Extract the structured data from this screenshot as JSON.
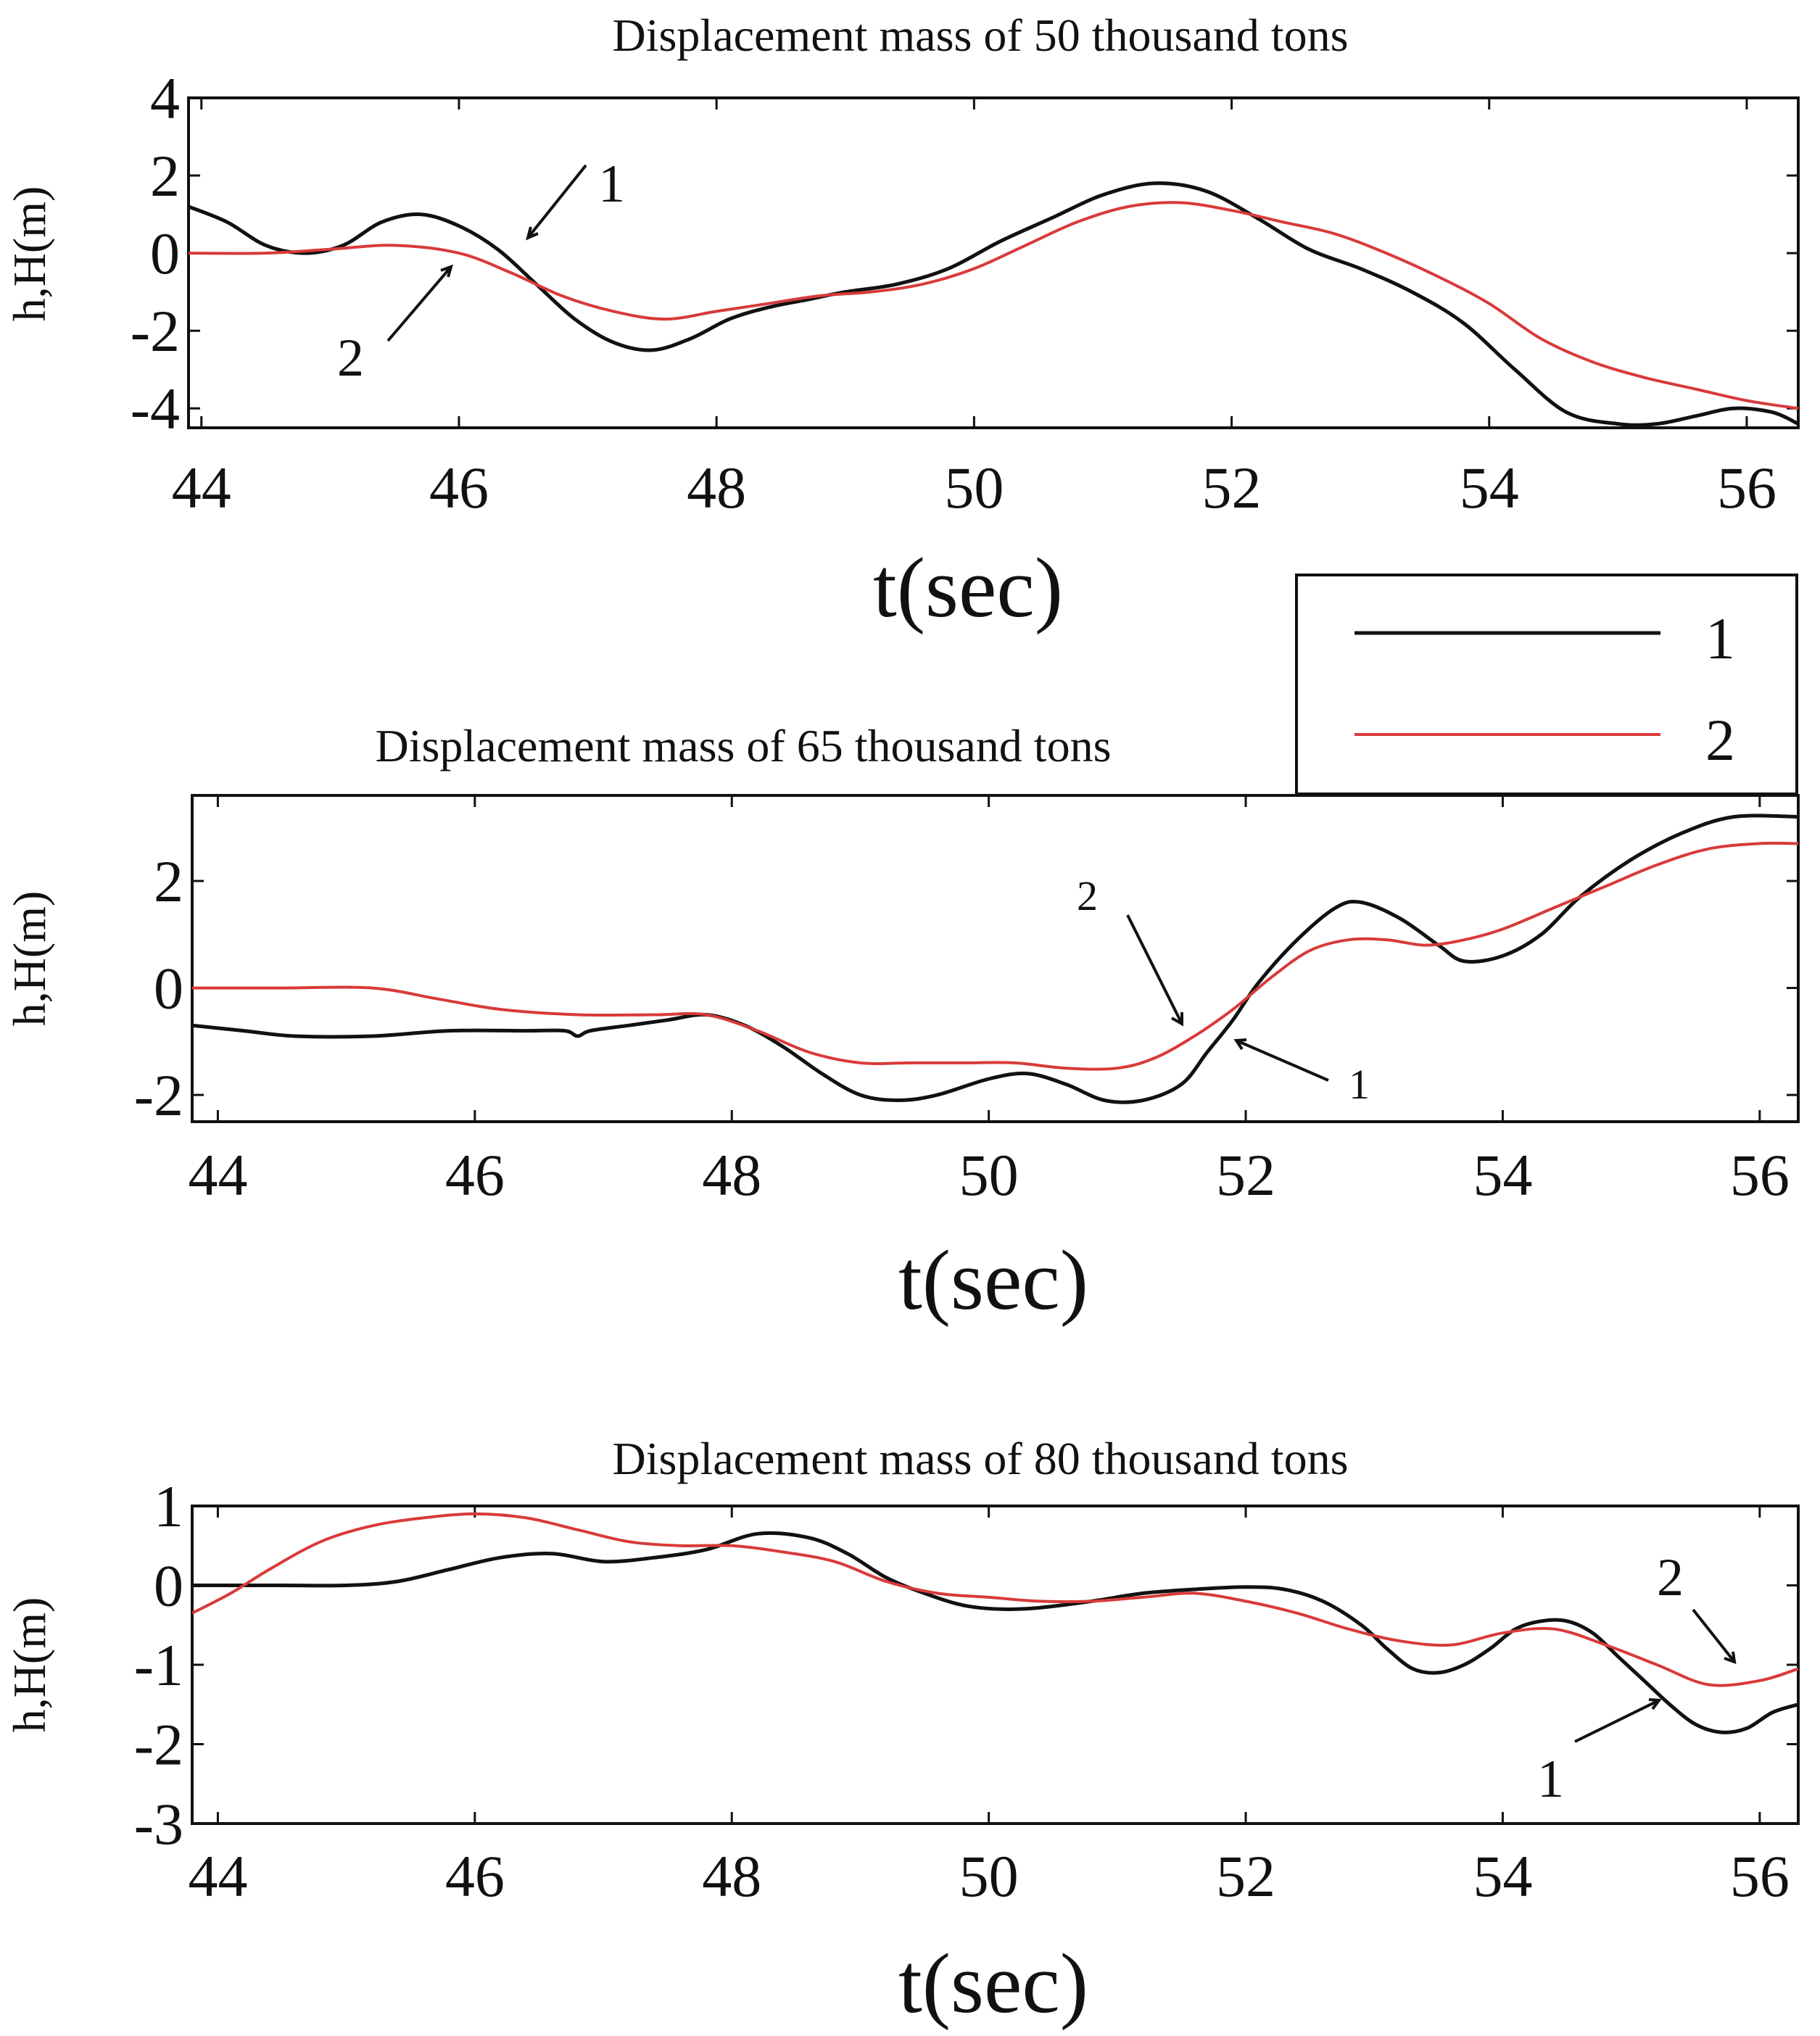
{
  "legend": {
    "items": [
      {
        "label": "1",
        "color": "#111111"
      },
      {
        "label": "2",
        "color": "#d93a3a"
      }
    ]
  },
  "chart_data": [
    {
      "type": "line",
      "title": "Displacement mass of 50 thousand tons",
      "xlabel": "t(sec)",
      "ylabel": "h,H(m)",
      "xlim": [
        43.9,
        56.4
      ],
      "ylim": [
        -4.5,
        4
      ],
      "xticks": [
        44,
        46,
        48,
        50,
        52,
        54,
        56
      ],
      "yticks": [
        4,
        2,
        0,
        -2,
        -4
      ],
      "ytick_labels": [
        "4",
        "2",
        "0",
        "-2",
        "-4"
      ],
      "series": [
        {
          "name": "1",
          "color": "#111111",
          "x": [
            43.9,
            44.2,
            44.5,
            44.8,
            45.1,
            45.4,
            45.7,
            46.0,
            46.3,
            46.6,
            46.9,
            47.2,
            47.5,
            47.8,
            48.1,
            48.4,
            48.7,
            49.0,
            49.4,
            49.8,
            50.2,
            50.6,
            51.0,
            51.4,
            51.8,
            52.2,
            52.6,
            53.0,
            53.4,
            53.8,
            54.2,
            54.6,
            55.0,
            55.3,
            55.6,
            55.9,
            56.2,
            56.4
          ],
          "values": [
            1.2,
            0.8,
            0.2,
            0.0,
            0.2,
            0.8,
            1.0,
            0.7,
            0.1,
            -0.8,
            -1.7,
            -2.3,
            -2.5,
            -2.2,
            -1.7,
            -1.4,
            -1.2,
            -1.0,
            -0.8,
            -0.4,
            0.3,
            0.9,
            1.5,
            1.8,
            1.6,
            0.9,
            0.1,
            -0.4,
            -1.0,
            -1.8,
            -3.0,
            -4.1,
            -4.4,
            -4.4,
            -4.2,
            -4.0,
            -4.1,
            -4.4
          ]
        },
        {
          "name": "2",
          "color": "#d93a3a",
          "x": [
            43.9,
            44.5,
            45.0,
            45.5,
            46.0,
            46.4,
            46.8,
            47.2,
            47.6,
            48.0,
            48.4,
            48.8,
            49.2,
            49.6,
            50.0,
            50.4,
            50.8,
            51.2,
            51.6,
            52.0,
            52.4,
            52.8,
            53.2,
            53.6,
            54.0,
            54.4,
            54.8,
            55.2,
            55.6,
            56.0,
            56.4
          ],
          "values": [
            0.0,
            0.0,
            0.1,
            0.2,
            0.0,
            -0.5,
            -1.1,
            -1.5,
            -1.7,
            -1.5,
            -1.3,
            -1.1,
            -1.0,
            -0.8,
            -0.4,
            0.2,
            0.8,
            1.2,
            1.3,
            1.1,
            0.8,
            0.5,
            0.0,
            -0.6,
            -1.3,
            -2.2,
            -2.8,
            -3.2,
            -3.5,
            -3.8,
            -4.0
          ]
        }
      ],
      "annotations": [
        {
          "label": "1",
          "series": "1",
          "x": 46.4,
          "y": 0.2
        },
        {
          "label": "2",
          "series": "2",
          "x": 45.9,
          "y": -0.6
        }
      ]
    },
    {
      "type": "line",
      "title": "Displacement mass of 65 thousand tons",
      "xlabel": "t(sec)",
      "ylabel": "h,H(m)",
      "xlim": [
        43.8,
        56.3
      ],
      "ylim": [
        -2.5,
        3.6
      ],
      "xticks": [
        44,
        46,
        48,
        50,
        52,
        54,
        56
      ],
      "yticks": [
        2,
        0,
        -2
      ],
      "ytick_labels": [
        "2",
        "0",
        "-2"
      ],
      "series": [
        {
          "name": "1",
          "color": "#111111",
          "x": [
            43.8,
            44.2,
            44.6,
            45.2,
            45.8,
            46.4,
            46.7,
            46.8,
            46.9,
            47.2,
            47.5,
            47.8,
            48.1,
            48.4,
            48.7,
            49.0,
            49.3,
            49.6,
            50.0,
            50.3,
            50.6,
            50.9,
            51.2,
            51.5,
            51.7,
            51.9,
            52.1,
            52.4,
            52.7,
            52.9,
            53.2,
            53.5,
            53.7,
            54.0,
            54.3,
            54.6,
            55.0,
            55.4,
            55.8,
            56.3
          ],
          "values": [
            -0.7,
            -0.8,
            -0.9,
            -0.9,
            -0.8,
            -0.8,
            -0.8,
            -0.9,
            -0.8,
            -0.7,
            -0.6,
            -0.5,
            -0.7,
            -1.1,
            -1.6,
            -2.0,
            -2.1,
            -2.0,
            -1.7,
            -1.6,
            -1.8,
            -2.1,
            -2.1,
            -1.8,
            -1.2,
            -0.6,
            0.1,
            0.9,
            1.5,
            1.6,
            1.3,
            0.8,
            0.5,
            0.6,
            1.0,
            1.7,
            2.4,
            2.9,
            3.2,
            3.2
          ]
        },
        {
          "name": "2",
          "color": "#d93a3a",
          "x": [
            43.8,
            44.5,
            45.2,
            45.7,
            46.2,
            46.8,
            47.4,
            47.8,
            48.2,
            48.6,
            49.0,
            49.4,
            49.8,
            50.2,
            50.6,
            51.0,
            51.3,
            51.6,
            51.9,
            52.2,
            52.5,
            52.8,
            53.1,
            53.4,
            53.7,
            54.0,
            54.4,
            54.8,
            55.2,
            55.6,
            56.0,
            56.3
          ],
          "values": [
            0.0,
            0.0,
            0.0,
            -0.2,
            -0.4,
            -0.5,
            -0.5,
            -0.5,
            -0.8,
            -1.2,
            -1.4,
            -1.4,
            -1.4,
            -1.4,
            -1.5,
            -1.5,
            -1.3,
            -0.9,
            -0.4,
            0.2,
            0.7,
            0.9,
            0.9,
            0.8,
            0.9,
            1.1,
            1.5,
            1.9,
            2.3,
            2.6,
            2.7,
            2.7
          ]
        }
      ],
      "annotations": [
        {
          "label": "2",
          "series": "2",
          "x": 51.5,
          "y": -0.7
        },
        {
          "label": "1",
          "series": "1",
          "x": 51.9,
          "y": -1.0
        }
      ]
    },
    {
      "type": "line",
      "title": "Displacement mass of 80 thousand tons",
      "xlabel": "t(sec)",
      "ylabel": "h,H(m)",
      "xlim": [
        43.8,
        56.3
      ],
      "ylim": [
        -3,
        1
      ],
      "xticks": [
        44,
        46,
        48,
        50,
        52,
        54,
        56
      ],
      "yticks": [
        1,
        0,
        -1,
        -2,
        -3
      ],
      "ytick_labels": [
        "1",
        "0",
        "-1",
        "-2",
        "-3"
      ],
      "series": [
        {
          "name": "1",
          "color": "#111111",
          "x": [
            43.8,
            44.5,
            45.0,
            45.4,
            45.8,
            46.2,
            46.6,
            47.0,
            47.4,
            47.8,
            48.2,
            48.6,
            48.9,
            49.2,
            49.5,
            49.8,
            50.1,
            50.4,
            50.8,
            51.2,
            51.6,
            52.0,
            52.3,
            52.6,
            52.9,
            53.1,
            53.3,
            53.5,
            53.7,
            53.9,
            54.1,
            54.3,
            54.5,
            54.7,
            54.9,
            55.1,
            55.3,
            55.5,
            55.7,
            55.9,
            56.1,
            56.3
          ],
          "values": [
            0.0,
            0.0,
            0.0,
            0.05,
            0.2,
            0.35,
            0.4,
            0.3,
            0.35,
            0.45,
            0.65,
            0.6,
            0.4,
            0.1,
            -0.1,
            -0.25,
            -0.3,
            -0.28,
            -0.2,
            -0.1,
            -0.05,
            -0.02,
            -0.05,
            -0.2,
            -0.5,
            -0.8,
            -1.05,
            -1.1,
            -1.0,
            -0.8,
            -0.55,
            -0.45,
            -0.45,
            -0.6,
            -0.9,
            -1.2,
            -1.5,
            -1.75,
            -1.85,
            -1.8,
            -1.6,
            -1.5
          ]
        },
        {
          "name": "2",
          "color": "#d93a3a",
          "x": [
            43.8,
            44.1,
            44.4,
            44.8,
            45.2,
            45.6,
            46.0,
            46.4,
            46.8,
            47.2,
            47.6,
            48.0,
            48.4,
            48.8,
            49.2,
            49.6,
            50.0,
            50.4,
            50.8,
            51.2,
            51.6,
            52.0,
            52.4,
            52.8,
            53.2,
            53.6,
            54.0,
            54.4,
            54.8,
            55.2,
            55.6,
            56.0,
            56.3
          ],
          "values": [
            -0.35,
            -0.1,
            0.2,
            0.55,
            0.75,
            0.85,
            0.9,
            0.85,
            0.7,
            0.55,
            0.5,
            0.5,
            0.42,
            0.3,
            0.05,
            -0.1,
            -0.15,
            -0.2,
            -0.2,
            -0.15,
            -0.1,
            -0.2,
            -0.35,
            -0.55,
            -0.7,
            -0.75,
            -0.6,
            -0.55,
            -0.75,
            -1.0,
            -1.25,
            -1.2,
            -1.05
          ]
        }
      ],
      "annotations": [
        {
          "label": "2",
          "series": "2",
          "x": 55.6,
          "y": -1.05
        },
        {
          "label": "1",
          "series": "1",
          "x": 55.4,
          "y": -1.65
        }
      ]
    }
  ]
}
